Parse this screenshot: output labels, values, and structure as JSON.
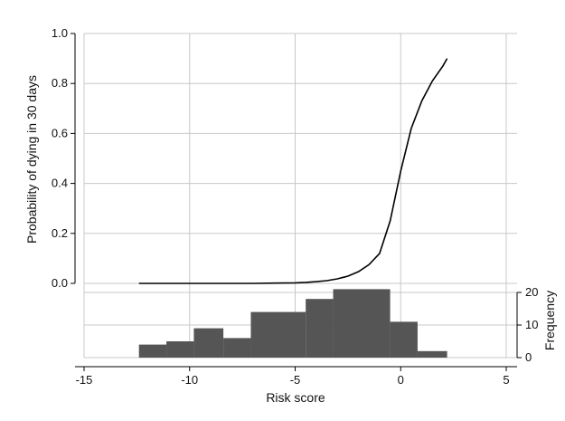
{
  "chart_data": [
    {
      "type": "line",
      "x": [
        -12.4,
        -11,
        -10,
        -9,
        -8,
        -7,
        -6,
        -5,
        -4.5,
        -4,
        -3.5,
        -3,
        -2.5,
        -2,
        -1.5,
        -1,
        -0.5,
        0,
        0.5,
        1,
        1.5,
        2,
        2.2
      ],
      "y": [
        0.0,
        0.0,
        0.0,
        0.0,
        0.0,
        0.0,
        0.001,
        0.002,
        0.004,
        0.007,
        0.011,
        0.018,
        0.029,
        0.047,
        0.075,
        0.12,
        0.25,
        0.45,
        0.62,
        0.73,
        0.81,
        0.87,
        0.9
      ],
      "xlim": [
        -15,
        5
      ],
      "ylim": [
        0,
        1
      ],
      "yticks": [
        "0.0",
        "0.2",
        "0.4",
        "0.6",
        "0.8",
        "1.0"
      ],
      "ylabel": "Probability of dying in 30 days",
      "grid": true
    },
    {
      "type": "bar",
      "bins": [
        {
          "x0": -12.4,
          "x1": -11.1,
          "count": 4
        },
        {
          "x0": -11.1,
          "x1": -9.8,
          "count": 5
        },
        {
          "x0": -9.8,
          "x1": -8.4,
          "count": 9
        },
        {
          "x0": -8.4,
          "x1": -7.1,
          "count": 6
        },
        {
          "x0": -7.1,
          "x1": -4.5,
          "count": 14
        },
        {
          "x0": -4.5,
          "x1": -3.2,
          "count": 18
        },
        {
          "x0": -3.2,
          "x1": -0.5,
          "count": 21
        },
        {
          "x0": -0.5,
          "x1": 0.8,
          "count": 11
        },
        {
          "x0": 0.8,
          "x1": 2.2,
          "count": 2
        }
      ],
      "xlim": [
        -15,
        5
      ],
      "ylim": [
        0,
        21
      ],
      "xticks": [
        "-15",
        "-10",
        "-5",
        "0",
        "5"
      ],
      "yticks": [
        "0",
        "10",
        "20"
      ],
      "xlabel": "Risk score",
      "ylabel": "Frequency",
      "grid": true
    }
  ]
}
